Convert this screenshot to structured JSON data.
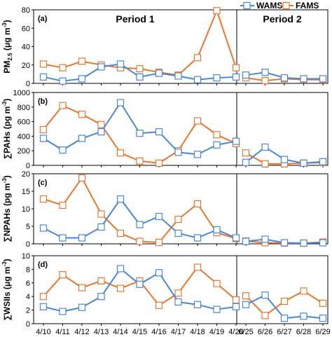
{
  "chart_data": {
    "type": "line",
    "colors": {
      "WAMS": "#4a86d6",
      "FAMS": "#e8772e",
      "axis": "#000000",
      "grid": "#000000"
    },
    "legend": {
      "placement": "top-right",
      "entries": [
        "WAMS",
        "FAMS"
      ]
    },
    "periods": [
      {
        "label": "Period 1",
        "dates": [
          "4/10",
          "4/11",
          "4/12",
          "4/13",
          "4/14",
          "4/15",
          "4/16",
          "4/17",
          "4/18",
          "4/19",
          "4/20"
        ]
      },
      {
        "label": "Period 2",
        "dates": [
          "6/25",
          "6/26",
          "6/27",
          "6/28",
          "6/29"
        ]
      }
    ],
    "panels": [
      {
        "panel_label": "(a)",
        "ylabel_main": "PM",
        "ylabel_sub": "2.5",
        "ylabel_suffix": " (μg m",
        "ylabel_sup": "-3",
        "ylabel_end": ")",
        "ylim": [
          0,
          80
        ],
        "yticks": [
          0,
          20,
          40,
          60,
          80
        ],
        "series": [
          {
            "name": "WAMS",
            "values": [
              7,
              2.5,
              5,
              18,
              21,
              7,
              11,
              8,
              4,
              6,
              7,
              9,
              12,
              6,
              5,
              5
            ]
          },
          {
            "name": "FAMS",
            "values": [
              21,
              17,
              24,
              20,
              17,
              16,
              12,
              9,
              28,
              79,
              17,
              6,
              3,
              5,
              4,
              4
            ]
          }
        ]
      },
      {
        "panel_label": "(b)",
        "ylabel_main": "∑PAHs (pg m",
        "ylabel_sup": "-3",
        "ylabel_end": ")",
        "ylim": [
          0,
          1000
        ],
        "yticks": [
          0,
          200,
          400,
          600,
          800,
          1000
        ],
        "series": [
          {
            "name": "WAMS",
            "values": [
              370,
              210,
              370,
              460,
              860,
              440,
              460,
              180,
              150,
              280,
              330,
              40,
              250,
              80,
              30,
              50
            ]
          },
          {
            "name": "FAMS",
            "values": [
              490,
              820,
              700,
              560,
              170,
              60,
              30,
              200,
              610,
              420,
              300,
              170,
              20,
              20,
              30,
              40
            ]
          }
        ]
      },
      {
        "panel_label": "(c)",
        "ylabel_main": "∑NPAHs (pg m",
        "ylabel_sup": "-3",
        "ylabel_end": ")",
        "ylim": [
          0,
          20
        ],
        "yticks": [
          0,
          5,
          10,
          15,
          20
        ],
        "series": [
          {
            "name": "WAMS",
            "values": [
              4.5,
              1.7,
              1.7,
              4.8,
              12.8,
              5.5,
              7.8,
              3,
              1.7,
              4,
              1.7,
              0.7,
              1.3,
              0.3,
              0.2,
              0.3
            ]
          },
          {
            "name": "FAMS",
            "values": [
              12.8,
              11,
              18.8,
              8.5,
              3,
              0.7,
              0.4,
              7,
              11.4,
              3.2,
              1.5,
              0.8,
              0.3,
              0.2,
              0.2,
              0.5
            ]
          }
        ]
      },
      {
        "panel_label": "(d)",
        "ylabel_main": "∑WSIIs (μg m",
        "ylabel_sup": "-3",
        "ylabel_end": ")",
        "ylim": [
          0,
          10
        ],
        "yticks": [
          0,
          2,
          4,
          6,
          8,
          10
        ],
        "series": [
          {
            "name": "WAMS",
            "values": [
              2.5,
              1.8,
              2.4,
              4,
              8.1,
              5.8,
              7.5,
              3.2,
              2.8,
              2.1,
              2.5,
              2.8,
              4.2,
              0.8,
              1.1,
              0.8
            ]
          },
          {
            "name": "FAMS",
            "values": [
              4,
              7.2,
              5.3,
              6.3,
              5.2,
              6.3,
              2.7,
              4.5,
              8.3,
              5.9,
              3.5,
              4.1,
              1.2,
              3.3,
              4.8,
              3
            ]
          }
        ]
      }
    ]
  }
}
